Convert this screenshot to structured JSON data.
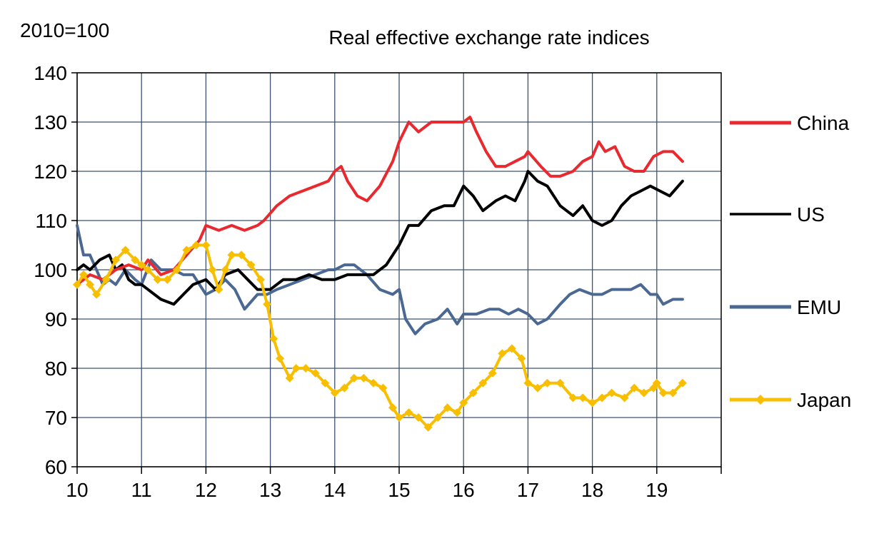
{
  "chart_data": {
    "type": "line",
    "title": "Real effective exchange rate indices",
    "ylabel": "2010=100",
    "xlabel": "",
    "xlim": [
      10,
      20
    ],
    "ylim": [
      60,
      140
    ],
    "x_ticks": [
      10,
      11,
      12,
      13,
      14,
      15,
      16,
      17,
      18,
      19
    ],
    "x_tick_labels": [
      "10",
      "11",
      "12",
      "13",
      "14",
      "15",
      "16",
      "17",
      "18",
      "19"
    ],
    "y_ticks": [
      60,
      70,
      80,
      90,
      100,
      110,
      120,
      130,
      140
    ],
    "y_tick_labels": [
      "60",
      "70",
      "80",
      "90",
      "100",
      "110",
      "120",
      "130",
      "140"
    ],
    "grid": true,
    "legend_position": "right",
    "series": [
      {
        "name": "China",
        "color": "#e8292f",
        "marker": "none",
        "x": [
          10.0,
          10.2,
          10.4,
          10.6,
          10.8,
          11.0,
          11.1,
          11.3,
          11.5,
          11.7,
          11.9,
          12.0,
          12.2,
          12.4,
          12.6,
          12.8,
          12.9,
          13.1,
          13.3,
          13.5,
          13.7,
          13.9,
          14.0,
          14.1,
          14.2,
          14.35,
          14.5,
          14.7,
          14.9,
          15.0,
          15.15,
          15.3,
          15.5,
          15.7,
          15.85,
          16.0,
          16.1,
          16.2,
          16.35,
          16.5,
          16.65,
          16.8,
          16.95,
          17.0,
          17.2,
          17.35,
          17.5,
          17.7,
          17.85,
          18.0,
          18.1,
          18.2,
          18.35,
          18.5,
          18.65,
          18.8,
          18.95,
          19.1,
          19.25,
          19.4
        ],
        "y": [
          97,
          99,
          98,
          100,
          101,
          100,
          102,
          99,
          100,
          103,
          106,
          109,
          108,
          109,
          108,
          109,
          110,
          113,
          115,
          116,
          117,
          118,
          120,
          121,
          118,
          115,
          114,
          117,
          122,
          126,
          130,
          128,
          130,
          130,
          130,
          130,
          131,
          128,
          124,
          121,
          121,
          122,
          123,
          124,
          121,
          119,
          119,
          120,
          122,
          123,
          126,
          124,
          125,
          121,
          120,
          120,
          123,
          124,
          124,
          122
        ]
      },
      {
        "name": "US",
        "color": "#000000",
        "marker": "none",
        "x": [
          10.0,
          10.1,
          10.2,
          10.35,
          10.5,
          10.6,
          10.7,
          10.8,
          10.9,
          11.0,
          11.1,
          11.3,
          11.5,
          11.65,
          11.8,
          12.0,
          12.15,
          12.3,
          12.5,
          12.65,
          12.8,
          13.0,
          13.2,
          13.4,
          13.6,
          13.8,
          14.0,
          14.2,
          14.4,
          14.6,
          14.8,
          15.0,
          15.15,
          15.3,
          15.5,
          15.7,
          15.85,
          16.0,
          16.15,
          16.3,
          16.5,
          16.65,
          16.8,
          16.95,
          17.0,
          17.15,
          17.3,
          17.5,
          17.7,
          17.85,
          18.0,
          18.15,
          18.3,
          18.45,
          18.6,
          18.75,
          18.9,
          19.05,
          19.2,
          19.4
        ],
        "y": [
          100,
          101,
          100,
          102,
          103,
          100,
          101,
          98,
          97,
          97,
          96,
          94,
          93,
          95,
          97,
          98,
          96,
          99,
          100,
          98,
          96,
          96,
          98,
          98,
          99,
          98,
          98,
          99,
          99,
          99,
          101,
          105,
          109,
          109,
          112,
          113,
          113,
          117,
          115,
          112,
          114,
          115,
          114,
          118,
          120,
          118,
          117,
          113,
          111,
          113,
          110,
          109,
          110,
          113,
          115,
          116,
          117,
          116,
          115,
          118
        ]
      },
      {
        "name": "EMU",
        "color": "#4a6891",
        "marker": "none",
        "x": [
          10.0,
          10.1,
          10.2,
          10.3,
          10.4,
          10.5,
          10.6,
          10.75,
          10.9,
          11.0,
          11.15,
          11.3,
          11.5,
          11.65,
          11.8,
          11.9,
          12.0,
          12.15,
          12.3,
          12.45,
          12.6,
          12.8,
          12.95,
          13.1,
          13.3,
          13.5,
          13.7,
          13.9,
          14.0,
          14.15,
          14.3,
          14.5,
          14.7,
          14.9,
          15.0,
          15.1,
          15.25,
          15.4,
          15.6,
          15.75,
          15.9,
          16.0,
          16.2,
          16.4,
          16.55,
          16.7,
          16.85,
          17.0,
          17.15,
          17.3,
          17.5,
          17.65,
          17.8,
          18.0,
          18.15,
          18.3,
          18.45,
          18.6,
          18.75,
          18.9,
          19.0,
          19.1,
          19.25,
          19.4
        ],
        "y": [
          109,
          103,
          103,
          100,
          97,
          98,
          97,
          100,
          98,
          97,
          102,
          100,
          100,
          99,
          99,
          97,
          95,
          96,
          98,
          96,
          92,
          95,
          95,
          96,
          97,
          98,
          99,
          100,
          100,
          101,
          101,
          99,
          96,
          95,
          96,
          90,
          87,
          89,
          90,
          92,
          89,
          91,
          91,
          92,
          92,
          91,
          92,
          91,
          89,
          90,
          93,
          95,
          96,
          95,
          95,
          96,
          96,
          96,
          97,
          95,
          95,
          93,
          94,
          94
        ]
      },
      {
        "name": "Japan",
        "color": "#f8be00",
        "marker": "diamond",
        "x": [
          10.0,
          10.1,
          10.2,
          10.3,
          10.45,
          10.6,
          10.75,
          10.9,
          11.0,
          11.1,
          11.25,
          11.4,
          11.55,
          11.7,
          11.85,
          12.0,
          12.1,
          12.2,
          12.3,
          12.4,
          12.55,
          12.7,
          12.85,
          12.95,
          13.05,
          13.15,
          13.3,
          13.4,
          13.55,
          13.7,
          13.85,
          14.0,
          14.15,
          14.3,
          14.45,
          14.6,
          14.75,
          14.9,
          15.0,
          15.15,
          15.3,
          15.45,
          15.6,
          15.75,
          15.9,
          16.0,
          16.15,
          16.3,
          16.45,
          16.6,
          16.75,
          16.9,
          17.0,
          17.15,
          17.3,
          17.5,
          17.7,
          17.85,
          18.0,
          18.15,
          18.3,
          18.5,
          18.65,
          18.8,
          18.95,
          19.0,
          19.1,
          19.25,
          19.4
        ],
        "y": [
          97,
          99,
          97,
          95,
          98,
          102,
          104,
          102,
          101,
          100,
          98,
          98,
          100,
          104,
          105,
          105,
          100,
          96,
          100,
          103,
          103,
          101,
          98,
          93,
          86,
          82,
          78,
          80,
          80,
          79,
          77,
          75,
          76,
          78,
          78,
          77,
          76,
          72,
          70,
          71,
          70,
          68,
          70,
          72,
          71,
          73,
          75,
          77,
          79,
          83,
          84,
          82,
          77,
          76,
          77,
          77,
          74,
          74,
          73,
          74,
          75,
          74,
          76,
          75,
          76,
          77,
          75,
          75,
          77
        ]
      }
    ]
  }
}
